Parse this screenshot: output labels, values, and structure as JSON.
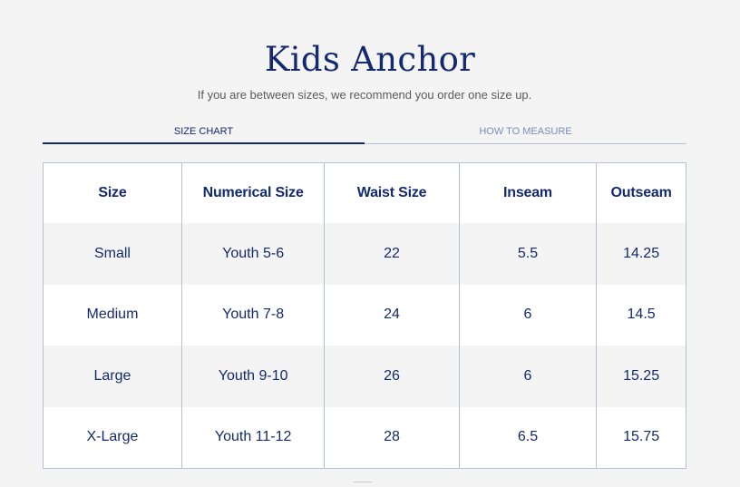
{
  "header": {
    "title": "Kids Anchor",
    "subtitle": "If you are between sizes, we recommend you order one size up."
  },
  "tabs": [
    {
      "label": "SIZE CHART",
      "active": true
    },
    {
      "label": "HOW TO MEASURE",
      "active": false
    }
  ],
  "size_table": {
    "headers": [
      "Size",
      "Numerical Size",
      "Waist Size",
      "Inseam",
      "Outseam"
    ],
    "rows": [
      [
        "Small",
        "Youth 5-6",
        "22",
        "5.5",
        "14.25"
      ],
      [
        "Medium",
        "Youth 7-8",
        "24",
        "6",
        "14.5"
      ],
      [
        "Large",
        "Youth 9-10",
        "26",
        "6",
        "15.25"
      ],
      [
        "X-Large",
        "Youth 11-12",
        "28",
        "6.5",
        "15.75"
      ]
    ]
  },
  "colors": {
    "accent": "#142a6e",
    "background": "#f4f4f4",
    "border": "#b7bfd8",
    "inactive_tab": "#7d8bb5"
  }
}
